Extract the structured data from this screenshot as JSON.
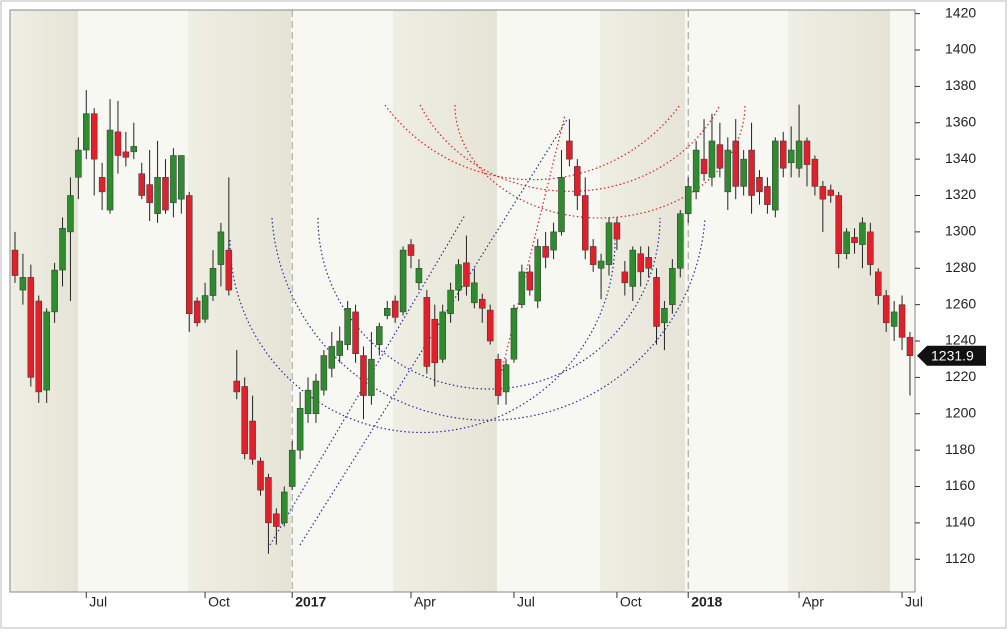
{
  "chart_data": {
    "type": "candlestick",
    "categories": [
      null,
      null,
      null,
      null,
      null,
      null,
      null,
      null,
      null,
      "Jul",
      null,
      null,
      null,
      null,
      null,
      null,
      null,
      null,
      null,
      null,
      null,
      null,
      null,
      null,
      "Oct",
      null,
      null,
      null,
      null,
      null,
      null,
      null,
      null,
      null,
      null,
      "2017",
      null,
      null,
      null,
      null,
      null,
      null,
      null,
      null,
      null,
      null,
      null,
      null,
      null,
      null,
      "Apr",
      null,
      null,
      null,
      null,
      null,
      null,
      null,
      null,
      null,
      null,
      null,
      null,
      "Jul",
      null,
      null,
      null,
      null,
      null,
      null,
      null,
      null,
      null,
      null,
      null,
      null,
      "Oct",
      null,
      null,
      null,
      null,
      null,
      null,
      null,
      null,
      "2018",
      null,
      null,
      null,
      null,
      null,
      null,
      null,
      null,
      null,
      null,
      null,
      null,
      null,
      "Apr",
      null,
      null,
      null,
      null,
      null,
      null,
      null,
      null,
      null,
      null,
      null,
      null,
      "Jul",
      null
    ],
    "open": [
      1290,
      1268,
      1275,
      1262,
      1213,
      1256,
      1279,
      1300,
      1330,
      1345,
      1365,
      1330,
      1312,
      1355,
      1344,
      1344,
      1332,
      1326,
      1310,
      1330,
      1316,
      1318,
      1320,
      1262,
      1252,
      1265,
      1282,
      1290,
      1218,
      1215,
      1196,
      1174,
      1165,
      1145,
      1140,
      1160,
      1180,
      1200,
      1200,
      1213,
      1225,
      1232,
      1238,
      1256,
      1232,
      1210,
      1238,
      1254,
      1262,
      1256,
      1293,
      1272,
      1264,
      1252,
      1230,
      1255,
      1268,
      1283,
      1261,
      1263,
      1257,
      1230,
      1212,
      1230,
      1260,
      1278,
      1262,
      1292,
      1290,
      1300,
      1350,
      1336,
      1320,
      1292,
      1280,
      1282,
      1305,
      1278,
      1270,
      1288,
      1286,
      1275,
      1250,
      1260,
      1280,
      1310,
      1322,
      1340,
      1330,
      1348,
      1322,
      1350,
      1325,
      1345,
      1330,
      1325,
      1312,
      1350,
      1338,
      1335,
      1350,
      1340,
      1325,
      1323,
      1320,
      1288,
      1297,
      1293,
      1300,
      1278,
      1265,
      1248,
      1260,
      1242
    ],
    "high": [
      1300,
      1288,
      1282,
      1265,
      1258,
      1283,
      1308,
      1330,
      1352,
      1378,
      1368,
      1338,
      1373,
      1372,
      1355,
      1360,
      1338,
      1345,
      1350,
      1340,
      1346,
      1342,
      1322,
      1264,
      1272,
      1290,
      1305,
      1330,
      1235,
      1220,
      1210,
      1176,
      1167,
      1148,
      1160,
      1185,
      1212,
      1220,
      1222,
      1235,
      1245,
      1248,
      1262,
      1260,
      1237,
      1245,
      1250,
      1262,
      1265,
      1292,
      1296,
      1285,
      1268,
      1260,
      1260,
      1272,
      1285,
      1298,
      1280,
      1266,
      1260,
      1233,
      1230,
      1260,
      1282,
      1282,
      1296,
      1300,
      1305,
      1345,
      1362,
      1340,
      1330,
      1296,
      1288,
      1308,
      1308,
      1284,
      1292,
      1292,
      1292,
      1280,
      1262,
      1285,
      1312,
      1330,
      1350,
      1362,
      1365,
      1360,
      1352,
      1362,
      1345,
      1360,
      1334,
      1330,
      1352,
      1355,
      1358,
      1370,
      1352,
      1342,
      1328,
      1326,
      1322,
      1302,
      1302,
      1308,
      1305,
      1280,
      1268,
      1262,
      1265,
      1245
    ],
    "low": [
      1272,
      1260,
      1215,
      1206,
      1206,
      1250,
      1270,
      1262,
      1318,
      1340,
      1320,
      1312,
      1310,
      1332,
      1336,
      1340,
      1318,
      1306,
      1305,
      1310,
      1308,
      1310,
      1245,
      1248,
      1250,
      1262,
      1270,
      1265,
      1208,
      1175,
      1172,
      1155,
      1123,
      1128,
      1138,
      1158,
      1175,
      1195,
      1195,
      1210,
      1220,
      1228,
      1235,
      1228,
      1197,
      1205,
      1232,
      1252,
      1250,
      1254,
      1280,
      1268,
      1222,
      1215,
      1228,
      1250,
      1262,
      1265,
      1258,
      1250,
      1238,
      1205,
      1205,
      1228,
      1258,
      1265,
      1258,
      1280,
      1285,
      1298,
      1336,
      1312,
      1285,
      1278,
      1263,
      1276,
      1290,
      1265,
      1262,
      1270,
      1275,
      1238,
      1235,
      1255,
      1275,
      1305,
      1318,
      1328,
      1325,
      1330,
      1312,
      1318,
      1320,
      1310,
      1315,
      1310,
      1308,
      1330,
      1330,
      1330,
      1325,
      1320,
      1300,
      1316,
      1280,
      1285,
      1288,
      1280,
      1276,
      1260,
      1245,
      1240,
      1235,
      1210
    ],
    "close": [
      1276,
      1275,
      1220,
      1212,
      1256,
      1279,
      1302,
      1320,
      1345,
      1365,
      1340,
      1322,
      1356,
      1342,
      1341,
      1347,
      1320,
      1316,
      1330,
      1312,
      1342,
      1342,
      1255,
      1250,
      1265,
      1280,
      1300,
      1268,
      1212,
      1178,
      1175,
      1158,
      1140,
      1138,
      1157,
      1180,
      1203,
      1213,
      1218,
      1232,
      1237,
      1240,
      1258,
      1233,
      1210,
      1230,
      1248,
      1258,
      1253,
      1290,
      1287,
      1280,
      1226,
      1228,
      1256,
      1268,
      1282,
      1270,
      1272,
      1258,
      1240,
      1210,
      1227,
      1258,
      1278,
      1268,
      1292,
      1286,
      1300,
      1330,
      1340,
      1320,
      1290,
      1282,
      1284,
      1305,
      1296,
      1272,
      1290,
      1278,
      1280,
      1248,
      1258,
      1280,
      1310,
      1325,
      1345,
      1332,
      1350,
      1335,
      1345,
      1325,
      1340,
      1320,
      1322,
      1315,
      1350,
      1335,
      1345,
      1350,
      1337,
      1325,
      1318,
      1320,
      1288,
      1300,
      1294,
      1305,
      1282,
      1265,
      1250,
      1256,
      1242,
      1231.9
    ],
    "up_color": "#2e8b2e",
    "down_color": "#e0202a",
    "ylim": [
      1102,
      1422
    ],
    "yticks": [
      1120,
      1140,
      1160,
      1180,
      1200,
      1220,
      1240,
      1260,
      1280,
      1300,
      1320,
      1340,
      1360,
      1380,
      1400,
      1420
    ]
  }
}
